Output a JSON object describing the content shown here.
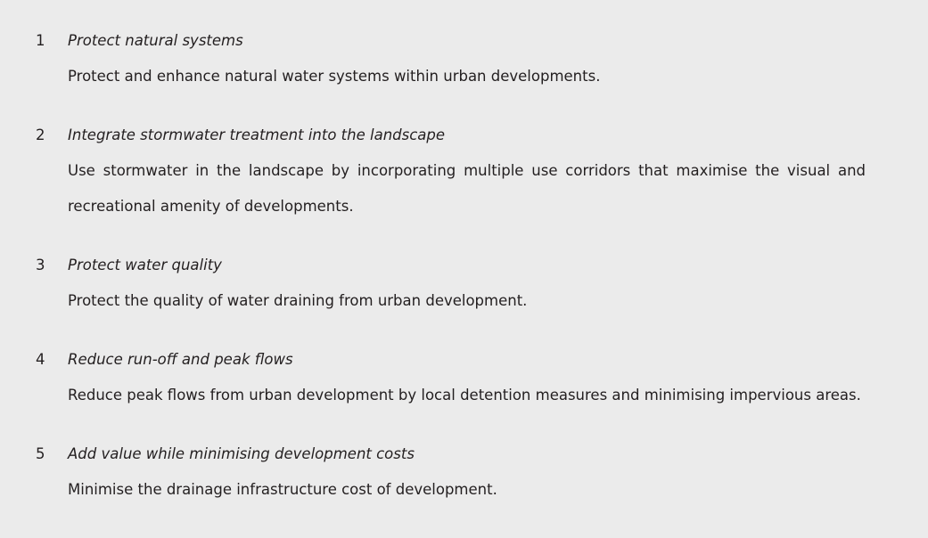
{
  "items": [
    {
      "number": "1",
      "title": "Protect natural systems",
      "description": "Protect and enhance natural water systems within urban developments."
    },
    {
      "number": "2",
      "title": "Integrate stormwater treatment into the landscape",
      "description": "Use stormwater in the landscape by incorporating multiple use corridors that maximise the visual and recreational amenity of developments."
    },
    {
      "number": "3",
      "title": "Protect water quality",
      "description": "Protect the quality of water draining from urban development."
    },
    {
      "number": "4",
      "title": "Reduce run-off and peak flows",
      "description": "Reduce peak flows from urban development by local detention measures and minimising impervious areas."
    },
    {
      "number": "5",
      "title": "Add value while minimising development costs",
      "description": "Minimise the drainage infrastructure cost of development."
    }
  ]
}
